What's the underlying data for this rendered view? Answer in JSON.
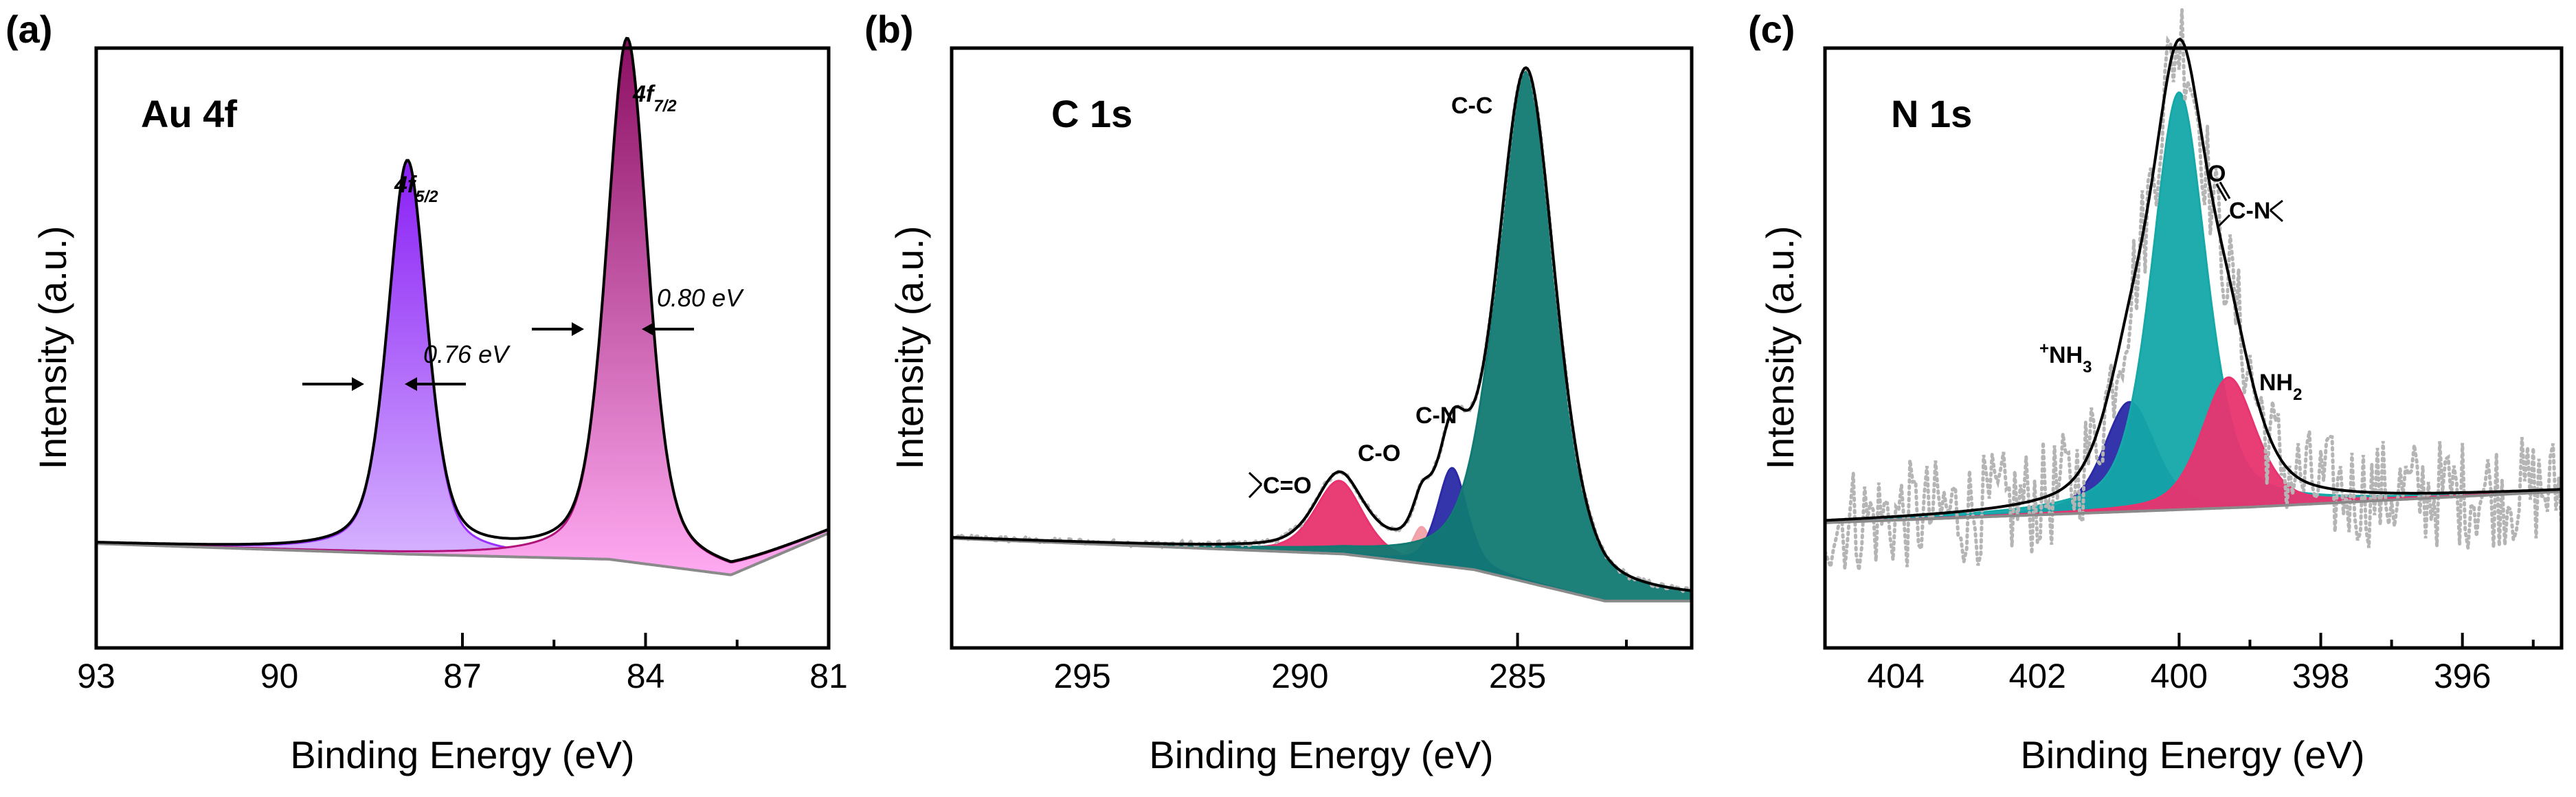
{
  "colors": {
    "envelope": "#000000",
    "background": "#8a8a8a",
    "raw_points": "#b5b5b5",
    "au_4f52": "#9b30ff",
    "au_4f72": "#b0127a",
    "c_co_double": "#e8336f",
    "c_co": "#f2a0a8",
    "c_cn": "#2a2aa6",
    "c_cc": "#117a73",
    "n_nh3": "#2a2aa6",
    "n_amide": "#14a8a8",
    "n_nh2": "#e8336f"
  },
  "chart_data": [
    {
      "panel": "(a)",
      "type": "line",
      "title": "Au 4f",
      "xlabel": "Binding Energy (eV)",
      "ylabel": "Intensity (a.u.)",
      "xlim": [
        93,
        81
      ],
      "x_reversed": true,
      "xticks": [
        "93",
        "90",
        "87",
        "84",
        "81"
      ],
      "ylim": [
        0,
        1.15
      ],
      "yticks": false,
      "baseline": [
        [
          93,
          0.2
        ],
        [
          88,
          0.18
        ],
        [
          84.6,
          0.17
        ],
        [
          82.6,
          0.14
        ],
        [
          81,
          0.22
        ]
      ],
      "peaks": [
        {
          "name": "4f5/2",
          "center": 87.9,
          "height": 0.75,
          "fwhm": 0.76,
          "color_key": "au_4f52",
          "label_main": "4f",
          "label_sub": "5/2"
        },
        {
          "name": "4f7/2",
          "center": 84.3,
          "height": 1.0,
          "fwhm": 0.8,
          "color_key": "au_4f72",
          "label_main": "4f",
          "label_sub": "7/2"
        }
      ],
      "fwhm_annotations": [
        "0.76 eV",
        "0.80 eV"
      ]
    },
    {
      "panel": "(b)",
      "type": "line",
      "title": "C 1s",
      "xlabel": "Binding Energy (eV)",
      "ylabel": "Intensity (a.u.)",
      "xlim": [
        298,
        281
      ],
      "x_reversed": true,
      "xticks": [
        "295",
        "290",
        "285"
      ],
      "ylim": [
        0,
        1.15
      ],
      "yticks": false,
      "baseline": [
        [
          298,
          0.21
        ],
        [
          289,
          0.18
        ],
        [
          286,
          0.15
        ],
        [
          283,
          0.09
        ],
        [
          281,
          0.09
        ]
      ],
      "peaks": [
        {
          "name": "C=O",
          "center": 289.1,
          "height": 0.14,
          "fwhm": 1.3,
          "color_key": "c_co_double",
          "label_main": "C=O"
        },
        {
          "name": "C-O",
          "center": 287.2,
          "height": 0.07,
          "fwhm": 0.5,
          "color_key": "c_co",
          "label_main": "C-O"
        },
        {
          "name": "C-N",
          "center": 286.5,
          "height": 0.19,
          "fwhm": 0.8,
          "color_key": "c_cn",
          "label_main": "C-N"
        },
        {
          "name": "C-C",
          "center": 284.8,
          "height": 0.98,
          "fwhm": 1.6,
          "color_key": "c_cc",
          "label_main": "C-C"
        }
      ]
    },
    {
      "panel": "(c)",
      "type": "line",
      "title": "N 1s",
      "xlabel": "Binding Energy (eV)",
      "ylabel": "Intensity (a.u.)",
      "xlim": [
        405,
        394.6
      ],
      "x_reversed": true,
      "xticks": [
        "404",
        "402",
        "400",
        "398",
        "396"
      ],
      "ylim": [
        0,
        1.15
      ],
      "yticks": false,
      "baseline": [
        [
          405,
          0.24
        ],
        [
          399,
          0.27
        ],
        [
          394.6,
          0.3
        ]
      ],
      "peaks": [
        {
          "name": "+NH3",
          "center": 400.7,
          "height": 0.21,
          "fwhm": 0.85,
          "color_key": "n_nh3",
          "label_main": "NH",
          "label_sup": "+",
          "label_sub": "3"
        },
        {
          "name": "O=C-N",
          "center": 400.0,
          "height": 0.8,
          "fwhm": 0.9,
          "color_key": "n_amide",
          "label_main": "C-N",
          "label_top": "O"
        },
        {
          "name": "NH2",
          "center": 399.3,
          "height": 0.25,
          "fwhm": 0.9,
          "color_key": "n_nh2",
          "label_main": "NH",
          "label_sub": "2"
        }
      ]
    }
  ]
}
